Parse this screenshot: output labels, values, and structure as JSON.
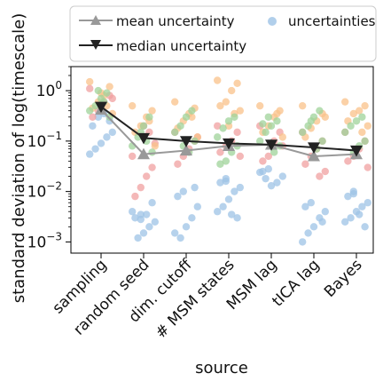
{
  "chart_data": {
    "type": "scatter",
    "xlabel": "source",
    "ylabel": "standard deviation of log(timescale)",
    "yscale": "log",
    "ylim": [
      0.0006,
      3
    ],
    "yticks": [
      {
        "value": 1,
        "base": "10",
        "exp": "0"
      },
      {
        "value": 0.1,
        "base": "10",
        "exp": "−1"
      },
      {
        "value": 0.01,
        "base": "10",
        "exp": "−2"
      },
      {
        "value": 0.001,
        "base": "10",
        "exp": "−3"
      }
    ],
    "categories": [
      "sampling",
      "random seed",
      "dim. cutoff",
      "# MSM states",
      "MSM lag",
      "tICA lag",
      "Bayes"
    ],
    "legend": {
      "placement": "top",
      "entries": [
        "mean uncertainty",
        "median uncertainty",
        "uncertainties"
      ]
    },
    "series": [
      {
        "name": "mean uncertainty",
        "color": "#999999",
        "marker": "triangle-up",
        "values": [
          0.42,
          0.055,
          0.065,
          0.08,
          0.085,
          0.05,
          0.055
        ]
      },
      {
        "name": "median uncertainty",
        "color": "#222222",
        "marker": "triangle-down",
        "values": [
          0.48,
          0.115,
          0.1,
          0.09,
          0.085,
          0.075,
          0.065
        ]
      }
    ],
    "uncertainty_colors": {
      "blue": "#9ec3e6",
      "green": "#9fd39a",
      "orange": "#f9c189",
      "red": "#f0a0a0"
    },
    "uncertainties": [
      {
        "category": "sampling",
        "blue": [
          0.3,
          0.2,
          0.15,
          0.12,
          0.09,
          0.07,
          0.055,
          0.25,
          0.35
        ],
        "green": [
          0.9,
          0.7,
          0.5,
          0.4,
          0.3,
          0.6,
          1.0
        ],
        "orange": [
          1.5,
          1.2,
          0.8,
          0.6,
          0.45,
          0.35,
          0.5,
          0.9
        ],
        "red": [
          1.1,
          0.8,
          0.6,
          0.4,
          0.3,
          0.7
        ]
      },
      {
        "category": "random seed",
        "blue": [
          0.0035,
          0.003,
          0.0025,
          0.002,
          0.0015,
          0.0012,
          0.004,
          0.006,
          0.0035,
          0.0028
        ],
        "green": [
          0.3,
          0.2,
          0.12,
          0.08,
          0.06,
          0.1,
          0.15
        ],
        "orange": [
          0.5,
          0.4,
          0.3,
          0.2,
          0.15,
          0.08,
          0.25
        ],
        "red": [
          0.05,
          0.03,
          0.02,
          0.012,
          0.008,
          0.09,
          0.15,
          0.2
        ]
      },
      {
        "category": "dim. cutoff",
        "blue": [
          0.01,
          0.008,
          0.005,
          0.003,
          0.002,
          0.0012,
          0.0015,
          0.012
        ],
        "green": [
          0.4,
          0.3,
          0.2,
          0.15,
          0.1,
          0.06,
          0.08
        ],
        "orange": [
          0.6,
          0.45,
          0.35,
          0.25,
          0.18,
          0.12,
          0.3
        ],
        "red": [
          0.15,
          0.1,
          0.07,
          0.05,
          0.035,
          0.12
        ]
      },
      {
        "category": "# MSM states",
        "blue": [
          0.018,
          0.015,
          0.012,
          0.01,
          0.007,
          0.005,
          0.004,
          0.003,
          0.0035,
          0.016
        ],
        "green": [
          0.3,
          0.25,
          0.18,
          0.12,
          0.08,
          0.06,
          0.04,
          0.035
        ],
        "orange": [
          1.6,
          1.4,
          1.0,
          0.6,
          0.5,
          0.4,
          0.35,
          0.2
        ],
        "red": [
          0.2,
          0.15,
          0.1,
          0.08,
          0.06,
          0.05
        ]
      },
      {
        "category": "MSM lag",
        "blue": [
          0.028,
          0.025,
          0.02,
          0.015,
          0.013,
          0.018,
          0.024
        ],
        "green": [
          0.25,
          0.2,
          0.15,
          0.1,
          0.08,
          0.06,
          0.3,
          0.22
        ],
        "orange": [
          0.5,
          0.4,
          0.3,
          0.2,
          0.15,
          0.12,
          0.35
        ],
        "red": [
          0.2,
          0.15,
          0.1,
          0.05,
          0.04,
          0.08
        ]
      },
      {
        "category": "tICA lag",
        "blue": [
          0.006,
          0.005,
          0.004,
          0.003,
          0.002,
          0.0015,
          0.001,
          0.0025
        ],
        "green": [
          0.4,
          0.3,
          0.2,
          0.15,
          0.1,
          0.07,
          0.25
        ],
        "orange": [
          0.5,
          0.35,
          0.25,
          0.18,
          0.12,
          0.3
        ],
        "red": [
          0.15,
          0.1,
          0.07,
          0.05,
          0.035,
          0.025,
          0.02
        ]
      },
      {
        "category": "Bayes",
        "blue": [
          0.01,
          0.008,
          0.006,
          0.005,
          0.004,
          0.003,
          0.0025,
          0.002,
          0.0035,
          0.009
        ],
        "green": [
          0.3,
          0.25,
          0.2,
          0.15,
          0.1,
          0.08,
          0.06
        ],
        "orange": [
          0.6,
          0.5,
          0.4,
          0.35,
          0.25,
          0.2,
          0.15
        ],
        "red": [
          0.15,
          0.1,
          0.07,
          0.05,
          0.04,
          0.03
        ]
      }
    ]
  }
}
